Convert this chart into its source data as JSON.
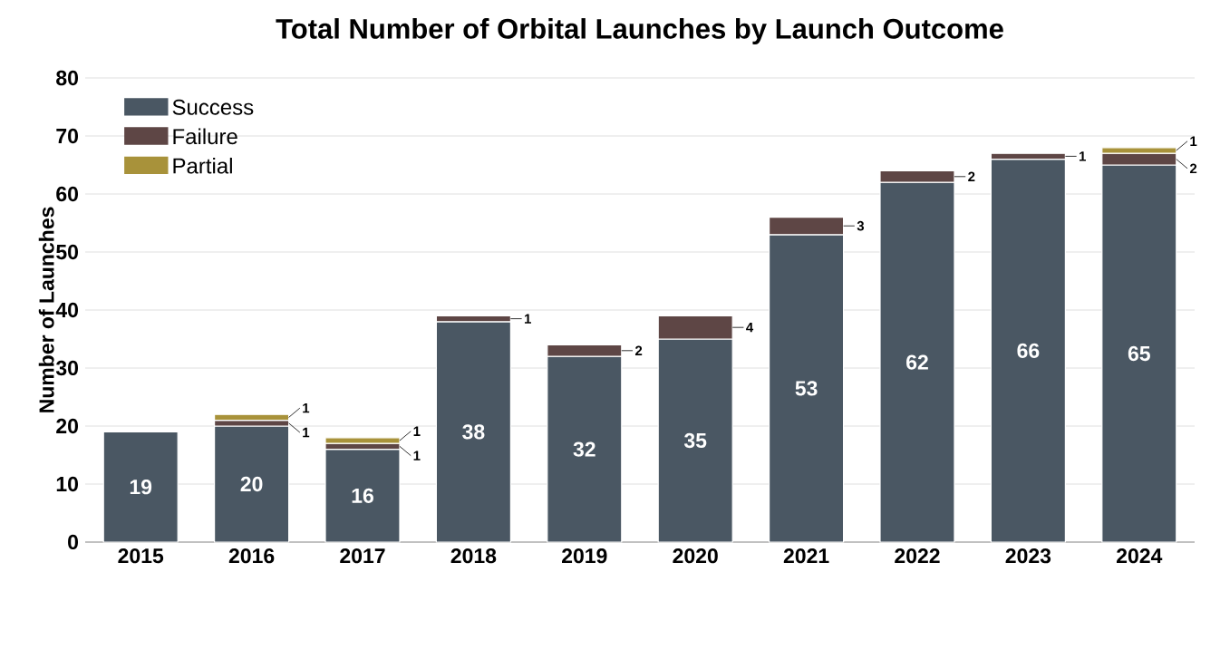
{
  "chart_data": {
    "type": "bar",
    "title": "Total Number of Orbital Launches by Launch Outcome",
    "ylabel": "Number of Launches",
    "categories": [
      "2015",
      "2016",
      "2017",
      "2018",
      "2019",
      "2020",
      "2021",
      "2022",
      "2023",
      "2024"
    ],
    "series": [
      {
        "name": "Success",
        "color": "#4a5763",
        "values": [
          19,
          20,
          16,
          38,
          32,
          35,
          53,
          62,
          66,
          65
        ]
      },
      {
        "name": "Failure",
        "color": "#5e4645",
        "values": [
          null,
          1,
          1,
          1,
          2,
          4,
          3,
          2,
          1,
          2
        ]
      },
      {
        "name": "Partial",
        "color": "#a8923a",
        "values": [
          null,
          1,
          1,
          null,
          null,
          null,
          null,
          null,
          null,
          1
        ]
      }
    ],
    "stacked": true,
    "ylim": [
      0,
      80
    ],
    "yticks": [
      0,
      10,
      20,
      30,
      40,
      50,
      60,
      70,
      80
    ],
    "grid": "y",
    "legend": "top left",
    "data_labels": true
  }
}
